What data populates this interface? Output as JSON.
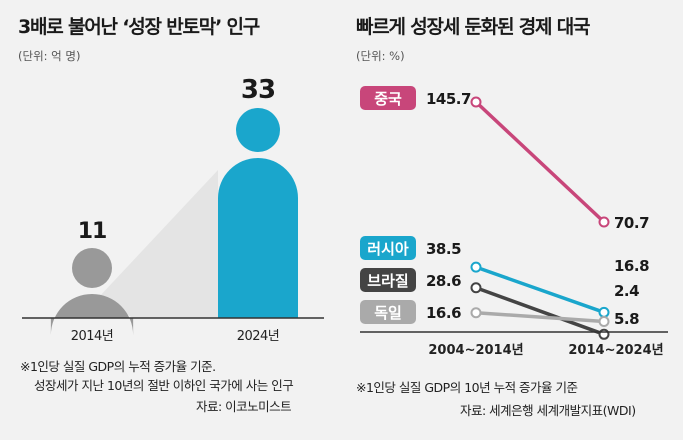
{
  "left": {
    "title": "3배로 불어난 ‘성장 반토막’ 인구",
    "unit": "(단위: 억 명)",
    "notes": [
      "※1인당 실질 GDP의 누적 증가율 기준.",
      "성장세가 지난 10년의 절반 이하인 국가에 사는 인구"
    ],
    "source": "자료: 이코노미스트",
    "colors": {
      "before": "#999999",
      "after": "#1aa6cc"
    }
  },
  "right": {
    "title": "빠르게 성장세 둔화된 경제 대국",
    "unit": "(단위: %)",
    "note": "※1인당 실질 GDP의 10년 누적 증가율 기준",
    "source": "자료: 세계은행 세계개발지표(WDI)"
  },
  "chart_data": [
    {
      "type": "bar",
      "categories": [
        "2014년",
        "2024년"
      ],
      "values": [
        11,
        33
      ],
      "value_labels": [
        "11",
        "33"
      ],
      "title": "3배로 불어난 ‘성장 반토막’ 인구",
      "ylabel": "",
      "unit": "억 명"
    },
    {
      "type": "line",
      "x": [
        "2004~2014년",
        "2014~2024년"
      ],
      "series": [
        {
          "name": "중국",
          "values": [
            145.7,
            70.7
          ],
          "labels": [
            "145.7",
            "70.7"
          ],
          "color": "#c8467a"
        },
        {
          "name": "러시아",
          "values": [
            38.5,
            16.8
          ],
          "labels": [
            "38.5",
            "16.8"
          ],
          "color": "#1aa6cc"
        },
        {
          "name": "브라질",
          "values": [
            28.6,
            2.4
          ],
          "labels": [
            "28.6",
            "2.4"
          ],
          "color": "#444444"
        },
        {
          "name": "독일",
          "values": [
            16.6,
            5.8
          ],
          "labels": [
            "16.6",
            "5.8"
          ],
          "color": "#aaaaaa"
        }
      ],
      "title": "빠르게 성장세 둔화된 경제 대국",
      "unit": "%"
    }
  ]
}
